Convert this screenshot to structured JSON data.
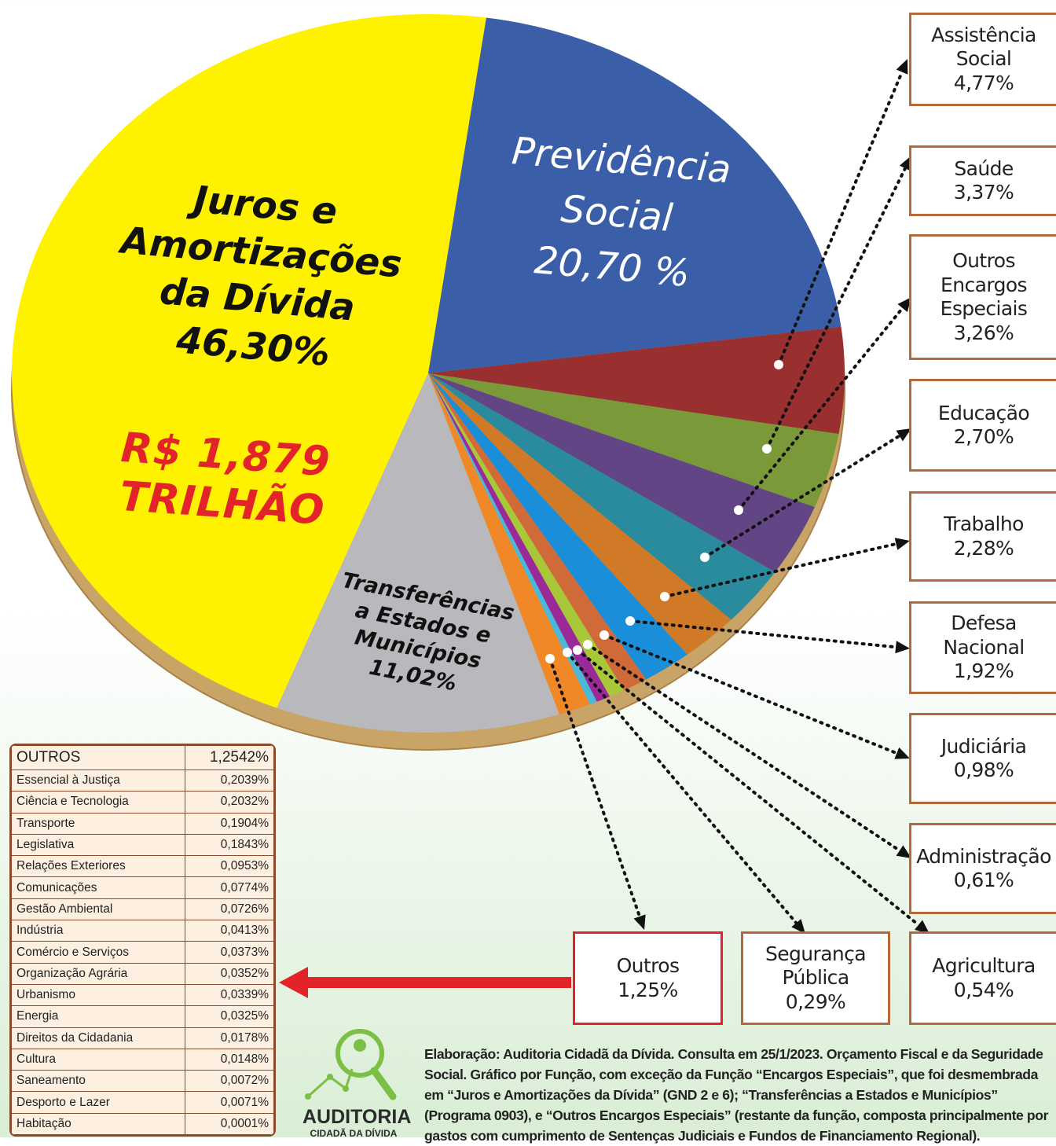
{
  "chart_data": {
    "type": "pie",
    "categories": [
      "Juros e Amortizações da Dívida",
      "Previdência Social",
      "Assistência Social",
      "Saúde",
      "Outros Encargos Especiais",
      "Educação",
      "Trabalho",
      "Defesa Nacional",
      "Judiciária",
      "Administração",
      "Agricultura",
      "Segurança Pública",
      "Outros",
      "Transferências a Estados e Municípios"
    ],
    "values": [
      46.3,
      20.7,
      4.77,
      3.37,
      3.26,
      2.7,
      2.28,
      1.92,
      0.98,
      0.61,
      0.54,
      0.29,
      1.25,
      11.02
    ],
    "value_labels": [
      "46,30%",
      "20,70 %",
      "4,77%",
      "3,37%",
      "3,26%",
      "2,70%",
      "2,28%",
      "1,92%",
      "0,98%",
      "0,61%",
      "0,54%",
      "0,29%",
      "1,25%",
      "11,02%"
    ],
    "colors": [
      "#fff200",
      "#3a5ea8",
      "#9a2f2f",
      "#7a9a3a",
      "#624584",
      "#2a8a9e",
      "#d07a28",
      "#1a8ed8",
      "#d06a38",
      "#a8c838",
      "#9a2a9a",
      "#4ab8d8",
      "#f08828",
      "#b9b9bd"
    ],
    "annotation": "R$ 1,879 TRILHÃO"
  },
  "table": {
    "header": [
      "OUTROS",
      "1,2542%"
    ],
    "rows": [
      [
        "Essencial à Justiça",
        "0,2039%"
      ],
      [
        "Ciência e Tecnologia",
        "0,2032%"
      ],
      [
        "Transporte",
        "0,1904%"
      ],
      [
        "Legislativa",
        "0,1843%"
      ],
      [
        "Relações Exteriores",
        "0,0953%"
      ],
      [
        "Comunicações",
        "0,0774%"
      ],
      [
        "Gestão Ambiental",
        "0,0726%"
      ],
      [
        "Indústria",
        "0,0413%"
      ],
      [
        "Comércio e Serviços",
        "0,0373%"
      ],
      [
        "Organização Agrária",
        "0,0352%"
      ],
      [
        "Urbanismo",
        "0,0339%"
      ],
      [
        "Energia",
        "0,0325%"
      ],
      [
        "Direitos da Cidadania",
        "0,0178%"
      ],
      [
        "Cultura",
        "0,0148%"
      ],
      [
        "Saneamento",
        "0,0072%"
      ],
      [
        "Desporto e Lazer",
        "0,0071%"
      ],
      [
        "Habitação",
        "0,0001%"
      ]
    ]
  },
  "logo": {
    "title": "AUDITORIA",
    "subtitle": "CIDADÃ DA DÍVIDA"
  },
  "source": "Elaboração: Auditoria Cidadã da Dívida. Consulta em 25/1/2023. Orçamento Fiscal e da Seguridade Social. Gráfico por Função, com exceção da Função “Encargos Especiais”, que foi desmembrada em “Juros e Amortizações da Dívida” (GND 2 e 6); “Transferências a Estados e Municípios” (Programa 0903), e “Outros Encargos Especiais” (restante da função, composta principalmente por gastos com cumprimento de Sentenças Judiciais e Fundos de Financiamento Regional)."
}
